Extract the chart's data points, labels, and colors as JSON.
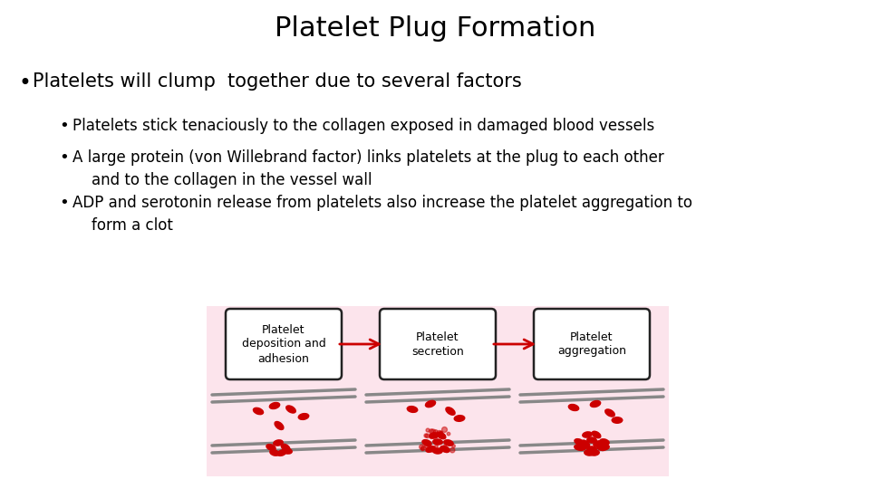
{
  "title": "Platelet Plug Formation",
  "title_fontsize": 22,
  "title_font": "sans-serif",
  "background_color": "#ffffff",
  "text_color": "#000000",
  "bullet1": "Platelets will clump  together due to several factors",
  "bullet1_fontsize": 15,
  "sub_bullets": [
    "Platelets stick tenaciously to the collagen exposed in damaged blood vessels",
    "A large protein (von Willebrand factor) links platelets at the plug to each other\n    and to the collagen in the vessel wall",
    "ADP and serotonin release from platelets also increase the platelet aggregation to\n    form a clot"
  ],
  "sub_bullet_fontsize": 12,
  "diagram_labels": [
    "Platelet\ndeposition and\nadhesion",
    "Platelet\nsecretion",
    "Platelet\naggregation"
  ],
  "diagram_bg": "#fce4ec",
  "diagram_box_color": "#ffffff",
  "diagram_border_color": "#222222",
  "arrow_color": "#cc0000",
  "platelet_color": "#cc0000",
  "vessel_color": "#888888"
}
